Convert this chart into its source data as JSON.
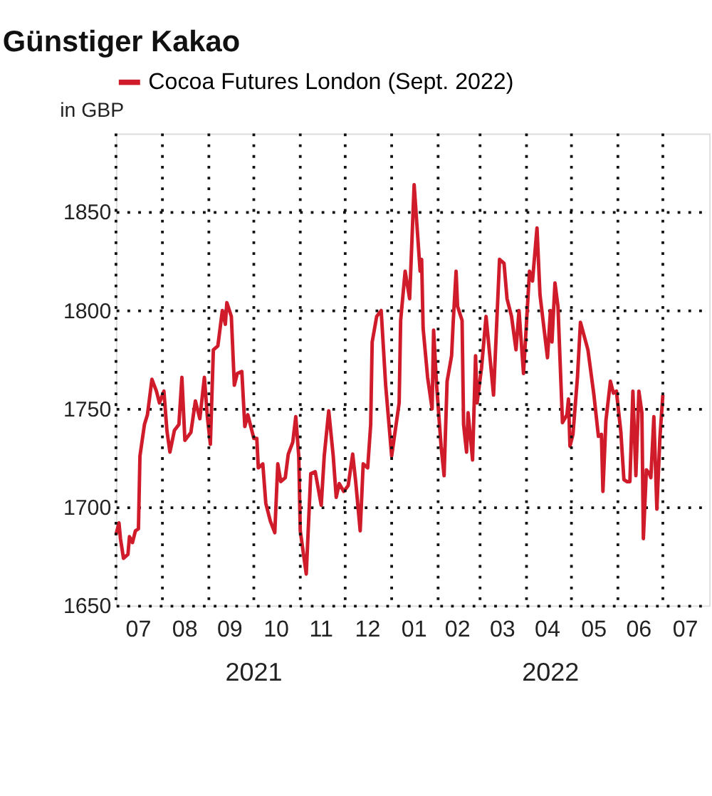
{
  "chart_data": {
    "type": "line",
    "title": "Günstiger Kakao",
    "ylabel": "in GBP",
    "x": [
      "2021-07-01",
      "2021-07-03",
      "2021-07-04",
      "2021-07-06",
      "2021-07-09",
      "2021-07-10",
      "2021-07-12",
      "2021-07-14",
      "2021-07-16",
      "2021-07-17",
      "2021-07-20",
      "2021-07-22",
      "2021-07-25",
      "2021-07-28",
      "2021-07-30",
      "2021-08-02",
      "2021-08-04",
      "2021-08-06",
      "2021-08-09",
      "2021-08-12",
      "2021-08-14",
      "2021-08-16",
      "2021-08-20",
      "2021-08-23",
      "2021-08-26",
      "2021-08-29",
      "2021-08-31",
      "2021-09-02",
      "2021-09-04",
      "2021-09-07",
      "2021-09-10",
      "2021-09-12",
      "2021-09-13",
      "2021-09-16",
      "2021-09-18",
      "2021-09-20",
      "2021-09-23",
      "2021-09-25",
      "2021-09-27",
      "2021-10-01",
      "2021-10-03",
      "2021-10-04",
      "2021-10-07",
      "2021-10-09",
      "2021-10-12",
      "2021-10-15",
      "2021-10-17",
      "2021-10-19",
      "2021-10-22",
      "2021-10-24",
      "2021-10-27",
      "2021-10-29",
      "2021-10-31",
      "2021-11-01",
      "2021-11-03",
      "2021-11-05",
      "2021-11-08",
      "2021-11-11",
      "2021-11-15",
      "2021-11-17",
      "2021-11-20",
      "2021-11-23",
      "2021-11-25",
      "2021-11-27",
      "2021-11-30",
      "2021-12-03",
      "2021-12-06",
      "2021-12-08",
      "2021-12-11",
      "2021-12-13",
      "2021-12-16",
      "2021-12-18",
      "2021-12-19",
      "2021-12-22",
      "2021-12-25",
      "2021-12-28",
      "2021-12-31",
      "2022-01-01",
      "2022-01-06",
      "2022-01-07",
      "2022-01-10",
      "2022-01-13",
      "2022-01-16",
      "2022-01-20",
      "2022-01-21",
      "2022-01-22",
      "2022-01-25",
      "2022-01-28",
      "2022-01-29",
      "2022-01-31",
      "2022-02-03",
      "2022-02-05",
      "2022-02-07",
      "2022-02-10",
      "2022-02-11",
      "2022-02-13",
      "2022-02-14",
      "2022-02-17",
      "2022-02-18",
      "2022-02-20",
      "2022-02-21",
      "2022-02-24",
      "2022-02-26",
      "2022-02-27",
      "2022-03-02",
      "2022-03-05",
      "2022-03-10",
      "2022-03-14",
      "2022-03-17",
      "2022-03-19",
      "2022-03-22",
      "2022-03-25",
      "2022-03-27",
      "2022-03-30",
      "2022-04-03",
      "2022-04-05",
      "2022-04-08",
      "2022-04-10",
      "2022-04-15",
      "2022-04-17",
      "2022-04-18",
      "2022-04-20",
      "2022-04-22",
      "2022-04-25",
      "2022-04-28",
      "2022-04-29",
      "2022-04-30",
      "2022-05-02",
      "2022-05-05",
      "2022-05-07",
      "2022-05-12",
      "2022-05-16",
      "2022-05-19",
      "2022-05-21",
      "2022-05-22",
      "2022-05-24",
      "2022-05-27",
      "2022-05-29",
      "2022-05-31",
      "2022-06-03",
      "2022-06-05",
      "2022-06-07",
      "2022-06-09",
      "2022-06-11",
      "2022-06-13",
      "2022-06-15",
      "2022-06-17",
      "2022-06-18",
      "2022-06-20",
      "2022-06-22",
      "2022-06-23",
      "2022-06-25",
      "2022-06-27",
      "2022-06-29",
      "2022-07-01"
    ],
    "series": [
      {
        "name": "Cocoa Futures London (Sept. 2022)",
        "color": "#d01c2a",
        "values": [
          1686,
          1692,
          1684,
          1674,
          1676,
          1685,
          1682,
          1688,
          1689,
          1726,
          1742,
          1747,
          1765,
          1759,
          1753,
          1759,
          1739,
          1728,
          1739,
          1742,
          1766,
          1734,
          1738,
          1754,
          1745,
          1766,
          1746,
          1732,
          1780,
          1782,
          1800,
          1793,
          1804,
          1797,
          1762,
          1768,
          1769,
          1741,
          1747,
          1735,
          1735,
          1720,
          1722,
          1702,
          1693,
          1687,
          1722,
          1713,
          1715,
          1727,
          1733,
          1746,
          1726,
          1688,
          1677,
          1666,
          1717,
          1718,
          1701,
          1726,
          1749,
          1726,
          1705,
          1712,
          1708,
          1711,
          1727,
          1713,
          1688,
          1722,
          1720,
          1742,
          1784,
          1797,
          1800,
          1762,
          1735,
          1726,
          1753,
          1795,
          1820,
          1806,
          1864,
          1820,
          1826,
          1791,
          1766,
          1750,
          1790,
          1762,
          1731,
          1716,
          1764,
          1777,
          1793,
          1820,
          1802,
          1795,
          1742,
          1728,
          1748,
          1724,
          1777,
          1753,
          1771,
          1797,
          1757,
          1826,
          1824,
          1806,
          1797,
          1780,
          1800,
          1768,
          1820,
          1815,
          1842,
          1808,
          1776,
          1800,
          1784,
          1814,
          1802,
          1743,
          1747,
          1755,
          1731,
          1737,
          1766,
          1794,
          1780,
          1757,
          1736,
          1737,
          1708,
          1744,
          1764,
          1758,
          1759,
          1738,
          1714,
          1713,
          1713,
          1759,
          1716,
          1759,
          1748,
          1684,
          1719,
          1717,
          1715,
          1746,
          1699,
          1735,
          1757
        ]
      }
    ],
    "xlim": [
      "2021-07-01",
      "2022-08-01"
    ],
    "xticks": [
      {
        "value": "2021-07-16",
        "label": "07"
      },
      {
        "value": "2021-08-16",
        "label": "08"
      },
      {
        "value": "2021-09-15",
        "label": "09"
      },
      {
        "value": "2021-10-16",
        "label": "10"
      },
      {
        "value": "2021-11-15",
        "label": "11"
      },
      {
        "value": "2021-12-16",
        "label": "12"
      },
      {
        "value": "2022-01-16",
        "label": "01"
      },
      {
        "value": "2022-02-14",
        "label": "02"
      },
      {
        "value": "2022-03-16",
        "label": "03"
      },
      {
        "value": "2022-04-15",
        "label": "04"
      },
      {
        "value": "2022-05-16",
        "label": "05"
      },
      {
        "value": "2022-06-15",
        "label": "06"
      },
      {
        "value": "2022-07-16",
        "label": "07"
      },
      {
        "value": "2021-08-01",
        "label": null
      },
      {
        "value": "2021-09-01",
        "label": null
      },
      {
        "value": "2021-10-01",
        "label": null
      },
      {
        "value": "2021-11-01",
        "label": null
      },
      {
        "value": "2021-12-01",
        "label": null
      },
      {
        "value": "2022-01-01",
        "label": null
      },
      {
        "value": "2022-02-01",
        "label": null
      },
      {
        "value": "2022-03-01",
        "label": null
      },
      {
        "value": "2022-04-01",
        "label": null
      },
      {
        "value": "2022-05-01",
        "label": null
      },
      {
        "value": "2022-06-01",
        "label": null
      },
      {
        "value": "2022-07-01",
        "label": null
      }
    ],
    "ylim": [
      1650,
      1890
    ],
    "yticks": [
      1650,
      1700,
      1750,
      1800,
      1850
    ],
    "annotations": [
      "2021",
      "2022"
    ],
    "grid": true,
    "legend": "top left",
    "line_style": "solid",
    "marker": "none"
  }
}
